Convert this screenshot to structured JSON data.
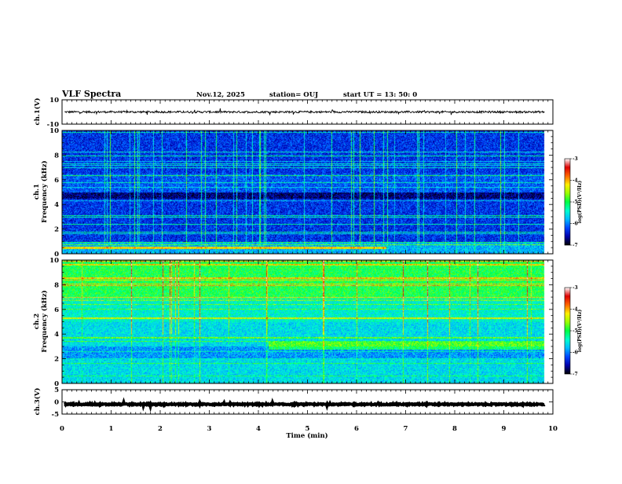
{
  "header": {
    "title": "VLF Spectra",
    "date": "Nov.12, 2025",
    "station": "station= OUJ",
    "start": "start  UT  =   13: 50: 0"
  },
  "chart_data": [
    {
      "id": "ch1-waveform",
      "type": "line",
      "ylabel": "ch.1(V)",
      "xlim": [
        0,
        10
      ],
      "ylim": [
        -10,
        10
      ],
      "yticks": [
        10,
        -10
      ],
      "baseline": 0,
      "noise_amplitude": 1
    },
    {
      "id": "ch1-spectrogram",
      "type": "heatmap",
      "ylabel": "ch.1\nFrequency (kHz)",
      "xlim": [
        0,
        10
      ],
      "ylim": [
        0,
        10
      ],
      "yticks": [
        0,
        2,
        4,
        6,
        8,
        10
      ],
      "data_end_min": 9.83,
      "background_level": -6.3,
      "colorbar": {
        "label": "log(PSD)(V²/Hz)",
        "ticks": [
          -3,
          -4,
          -5,
          -6,
          -7
        ],
        "range": [
          -7,
          -3
        ],
        "colors": [
          "#000000",
          "#0000aa",
          "#0044ff",
          "#00bbff",
          "#00ffcc",
          "#00ff44",
          "#99ff00",
          "#ffee00",
          "#ff6600",
          "#dd0000",
          "#ffffff"
        ]
      }
    },
    {
      "id": "ch2-spectrogram",
      "type": "heatmap",
      "ylabel": "ch.2\nFrequency (kHz)",
      "xlim": [
        0,
        10
      ],
      "ylim": [
        0,
        10
      ],
      "yticks": [
        0,
        2,
        4,
        6,
        8,
        10
      ],
      "data_end_min": 9.83,
      "background_level": -5.6,
      "colorbar": {
        "label": "log(PSD)(V²/Hz)",
        "ticks": [
          -3,
          -4,
          -5,
          -6,
          -7
        ],
        "range": [
          -7,
          -3
        ],
        "colors": [
          "#000000",
          "#0000aa",
          "#0044ff",
          "#00bbff",
          "#00ffcc",
          "#00ff44",
          "#99ff00",
          "#ffee00",
          "#ff6600",
          "#dd0000",
          "#ffffff"
        ]
      }
    },
    {
      "id": "ch3-waveform",
      "type": "line",
      "ylabel": "ch.3(V)",
      "xlim": [
        0,
        10
      ],
      "ylim": [
        -5,
        5
      ],
      "yticks": [
        5,
        0,
        -5
      ],
      "baseline": -1,
      "noise_amplitude": 0.3
    }
  ],
  "xaxis": {
    "label": "Time (min)",
    "ticks": [
      0,
      1,
      2,
      3,
      4,
      5,
      6,
      7,
      8,
      9,
      10
    ]
  }
}
